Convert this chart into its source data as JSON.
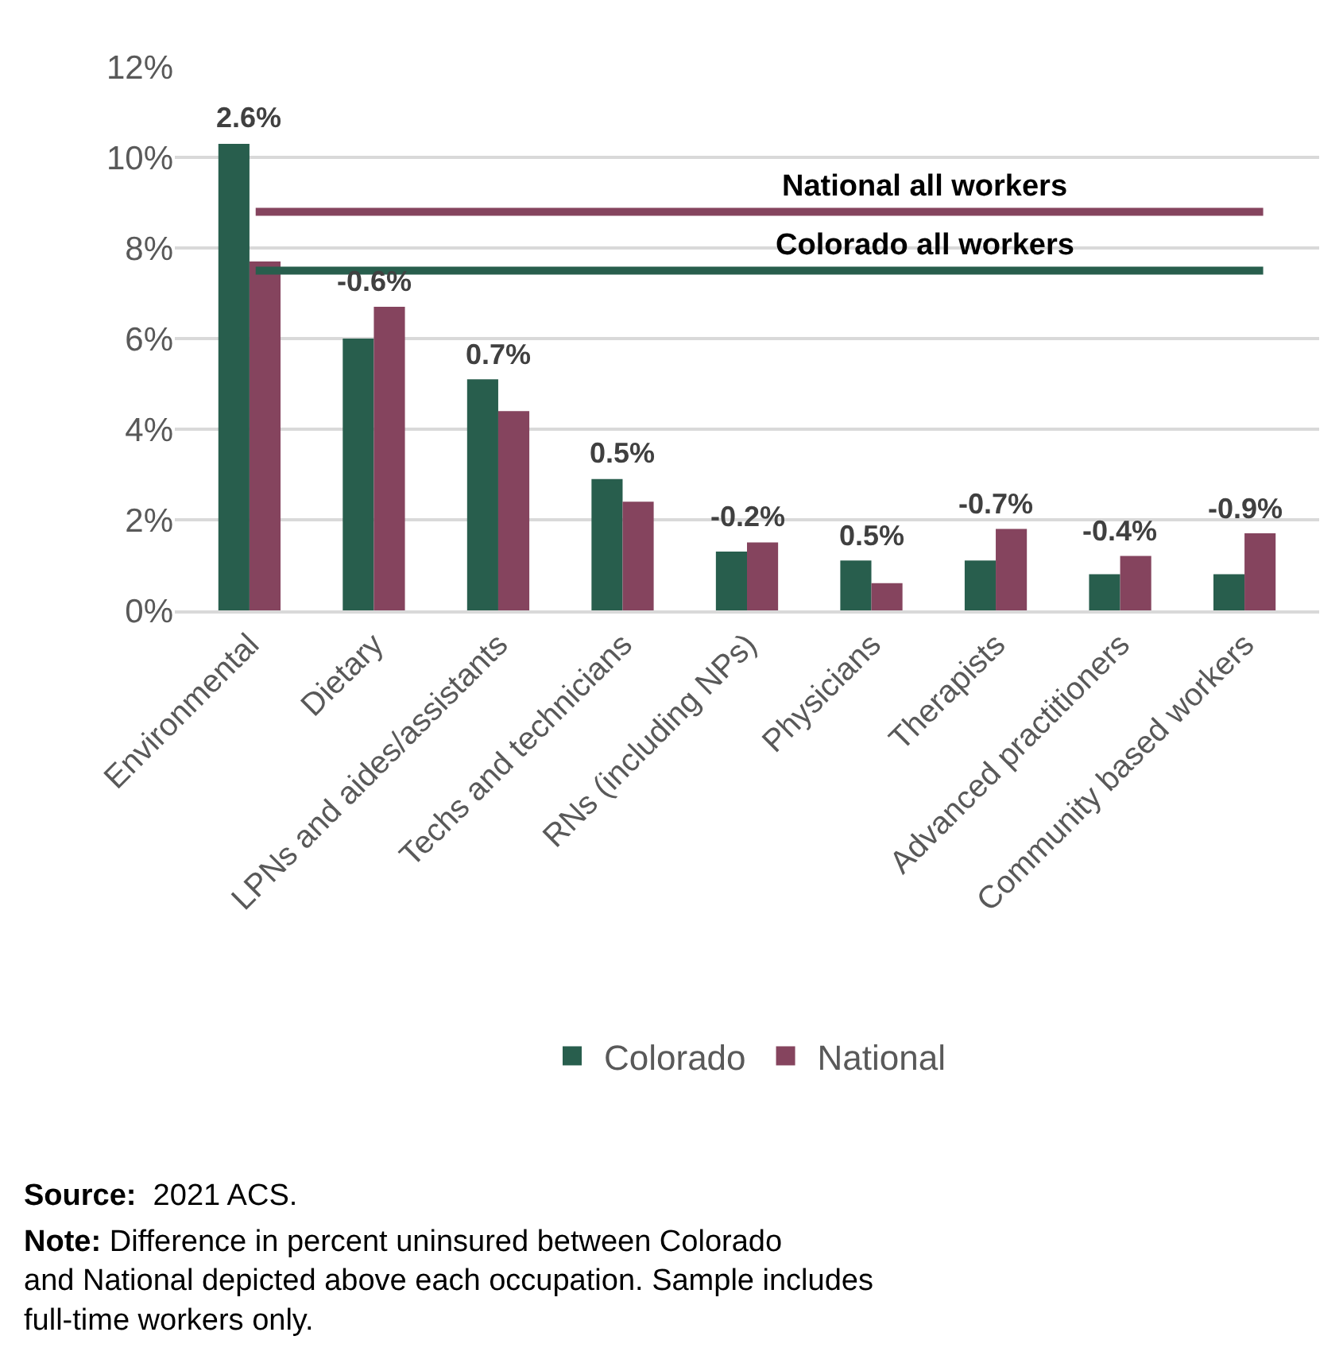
{
  "chart_data": {
    "type": "bar",
    "categories": [
      "Environmental",
      "Dietary",
      "LPNs and aides/assistants",
      "Techs and technicians",
      "RNs (including NPs)",
      "Physicians",
      "Therapists",
      "Advanced practitioners",
      "Community based workers"
    ],
    "series": [
      {
        "name": "Colorado",
        "color": "#285e4d",
        "values": [
          10.3,
          6.0,
          5.1,
          2.9,
          1.3,
          1.1,
          1.1,
          0.8,
          0.8
        ]
      },
      {
        "name": "National",
        "color": "#85445e",
        "values": [
          7.7,
          6.7,
          4.4,
          2.4,
          1.5,
          0.6,
          1.8,
          1.2,
          1.7
        ]
      }
    ],
    "ylim": [
      0,
      12
    ],
    "yticks": [
      {
        "value": 0,
        "label": "0%"
      },
      {
        "value": 2,
        "label": "2%"
      },
      {
        "value": 4,
        "label": "4%"
      },
      {
        "value": 6,
        "label": "6%"
      },
      {
        "value": 8,
        "label": "8%"
      },
      {
        "value": 10,
        "label": "10%"
      },
      {
        "value": 12,
        "label": "12%"
      }
    ],
    "grid": "y",
    "legend": "bottom",
    "ref_lines": [
      {
        "axis": "y",
        "value": 8.8,
        "label": "National all workers",
        "color": "#85445e"
      },
      {
        "axis": "y",
        "value": 7.5,
        "label": "Colorado all workers",
        "color": "#285e4d"
      }
    ],
    "annotations": [
      {
        "text": "2.6%",
        "x": "Environmental",
        "y": 10.3
      },
      {
        "text": "-0.6%",
        "x": "Dietary",
        "y": 6.7
      },
      {
        "text": "0.7%",
        "x": "LPNs and aides/assistants",
        "y": 5.1
      },
      {
        "text": "0.5%",
        "x": "Techs and technicians",
        "y": 2.9
      },
      {
        "text": "-0.2%",
        "x": "RNs (including NPs)",
        "y": 1.5
      },
      {
        "text": "0.5%",
        "x": "Physicians",
        "y": 1.1
      },
      {
        "text": "-0.7%",
        "x": "Therapists",
        "y": 1.8
      },
      {
        "text": "-0.4%",
        "x": "Advanced practitioners",
        "y": 1.2
      },
      {
        "text": "-0.9%",
        "x": "Community based workers",
        "y": 1.7
      },
      "Source:  2021 ACS.",
      "Note: Difference in percent uninsured between Colorado and National depicted above each occupation. Sample includes full-time workers only."
    ]
  }
}
